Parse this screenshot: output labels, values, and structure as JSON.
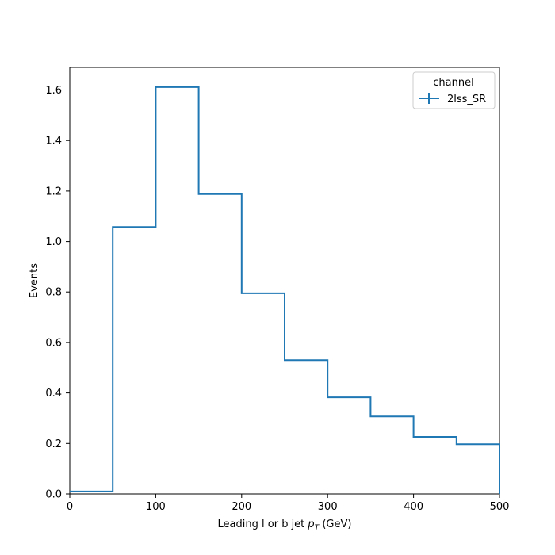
{
  "chart_data": {
    "type": "histogram-step",
    "xlabel_main": "Leading l or b jet ",
    "xlabel_math_p": "p",
    "xlabel_math_sub": "T",
    "xlabel_unit": " (GeV)",
    "ylabel": "Events",
    "xlim": [
      0,
      500
    ],
    "ylim": [
      0,
      1.69
    ],
    "x_ticks": [
      "0",
      "100",
      "200",
      "300",
      "400",
      "500"
    ],
    "y_ticks": [
      "0.0",
      "0.2",
      "0.4",
      "0.6",
      "0.8",
      "1.0",
      "1.2",
      "1.4",
      "1.6"
    ],
    "bin_edges": [
      0,
      50,
      100,
      150,
      200,
      250,
      300,
      350,
      400,
      450,
      500
    ],
    "series": [
      {
        "name": "2lss_SR",
        "color": "#1f77b4",
        "values": [
          0.01,
          1.058,
          1.612,
          1.188,
          0.795,
          0.53,
          0.383,
          0.307,
          0.226,
          0.197
        ]
      }
    ],
    "grid": false,
    "legend": {
      "title": "channel",
      "placement": "top-right"
    }
  }
}
